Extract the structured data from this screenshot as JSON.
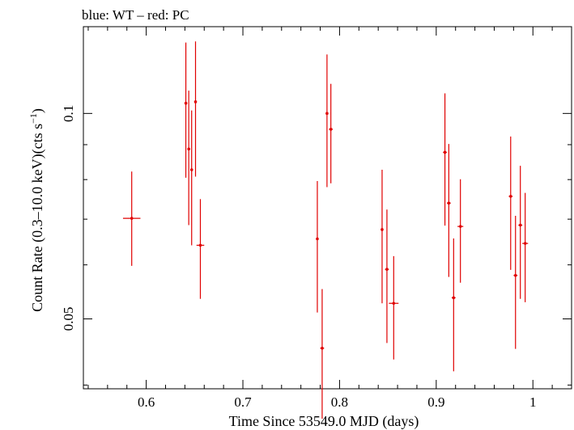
{
  "chart_data": {
    "type": "scatter",
    "title": "blue: WT – red: PC",
    "xlabel": "Time Since 53549.0 MJD (days)",
    "ylabel_main": "Count Rate (0.3–10.0 keV)(cts s",
    "ylabel_sup": "−1",
    "ylabel_close": ")",
    "xlim": [
      0.535,
      1.04
    ],
    "ylim": [
      0.0395,
      0.134
    ],
    "y_scale": "log",
    "grid": false,
    "x_ticks_major": [
      0.6,
      0.7,
      0.8,
      0.9,
      1.0
    ],
    "x_tick_labels": [
      "0.6",
      "0.7",
      "0.8",
      "0.9",
      "1"
    ],
    "x_ticks_minor": [
      0.54,
      0.56,
      0.58,
      0.62,
      0.64,
      0.66,
      0.68,
      0.72,
      0.74,
      0.76,
      0.78,
      0.82,
      0.84,
      0.86,
      0.88,
      0.92,
      0.94,
      0.96,
      0.98,
      1.02,
      1.04
    ],
    "y_ticks_major": [
      0.05,
      0.1
    ],
    "y_tick_labels": [
      "0.05",
      "0.1"
    ],
    "y_ticks_minor": [
      0.04,
      0.06,
      0.07,
      0.08,
      0.09
    ],
    "series": [
      {
        "color": "#e00000",
        "points": [
          {
            "x": 0.585,
            "xerr": 0.009,
            "y": 0.0702,
            "ylo": 0.0598,
            "yhi": 0.0822
          },
          {
            "x": 0.641,
            "xerr": 0.001,
            "y": 0.1035,
            "ylo": 0.0805,
            "yhi": 0.127
          },
          {
            "x": 0.644,
            "xerr": 0.001,
            "y": 0.0887,
            "ylo": 0.0686,
            "yhi": 0.108
          },
          {
            "x": 0.647,
            "xerr": 0.001,
            "y": 0.0827,
            "ylo": 0.0641,
            "yhi": 0.101
          },
          {
            "x": 0.651,
            "xerr": 0.001,
            "y": 0.104,
            "ylo": 0.0808,
            "yhi": 0.1275
          },
          {
            "x": 0.656,
            "xerr": 0.004,
            "y": 0.0641,
            "ylo": 0.0535,
            "yhi": 0.0749
          },
          {
            "x": 0.777,
            "xerr": 0.001,
            "y": 0.0655,
            "ylo": 0.0511,
            "yhi": 0.0796
          },
          {
            "x": 0.782,
            "xerr": 0.002,
            "y": 0.0453,
            "ylo": 0.0357,
            "yhi": 0.0553
          },
          {
            "x": 0.787,
            "xerr": 0.001,
            "y": 0.1,
            "ylo": 0.078,
            "yhi": 0.122
          },
          {
            "x": 0.791,
            "xerr": 0.002,
            "y": 0.0948,
            "ylo": 0.079,
            "yhi": 0.1105
          },
          {
            "x": 0.844,
            "xerr": 0.001,
            "y": 0.0676,
            "ylo": 0.0527,
            "yhi": 0.0827
          },
          {
            "x": 0.849,
            "xerr": 0.002,
            "y": 0.0591,
            "ylo": 0.0461,
            "yhi": 0.0723
          },
          {
            "x": 0.856,
            "xerr": 0.005,
            "y": 0.0527,
            "ylo": 0.0436,
            "yhi": 0.0618
          },
          {
            "x": 0.909,
            "xerr": 0.002,
            "y": 0.0877,
            "ylo": 0.0685,
            "yhi": 0.107
          },
          {
            "x": 0.913,
            "xerr": 0.002,
            "y": 0.0739,
            "ylo": 0.0576,
            "yhi": 0.0902
          },
          {
            "x": 0.918,
            "xerr": 0.002,
            "y": 0.0537,
            "ylo": 0.0419,
            "yhi": 0.0656
          },
          {
            "x": 0.925,
            "xerr": 0.003,
            "y": 0.0683,
            "ylo": 0.0565,
            "yhi": 0.0801
          },
          {
            "x": 0.977,
            "xerr": 0.002,
            "y": 0.0756,
            "ylo": 0.059,
            "yhi": 0.0925
          },
          {
            "x": 0.982,
            "xerr": 0.002,
            "y": 0.0579,
            "ylo": 0.0452,
            "yhi": 0.0708
          },
          {
            "x": 0.987,
            "xerr": 0.002,
            "y": 0.0686,
            "ylo": 0.0535,
            "yhi": 0.0838
          },
          {
            "x": 0.992,
            "xerr": 0.003,
            "y": 0.0645,
            "ylo": 0.0529,
            "yhi": 0.0765
          }
        ]
      }
    ]
  }
}
